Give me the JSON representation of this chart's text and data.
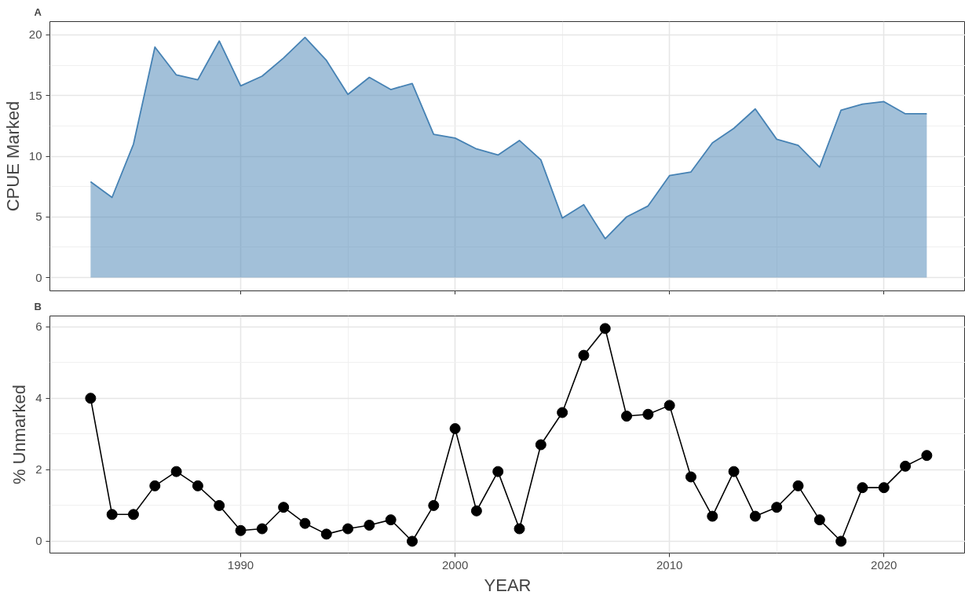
{
  "chart_data": [
    {
      "type": "area",
      "title": "A",
      "ylabel": "CPUE Marked",
      "x": [
        1983,
        1984,
        1985,
        1986,
        1987,
        1988,
        1989,
        1990,
        1991,
        1992,
        1993,
        1994,
        1995,
        1996,
        1997,
        1998,
        1999,
        2000,
        2001,
        2002,
        2003,
        2004,
        2005,
        2006,
        2007,
        2008,
        2009,
        2010,
        2011,
        2012,
        2013,
        2014,
        2015,
        2016,
        2017,
        2018,
        2019,
        2020,
        2021,
        2022
      ],
      "series": [
        {
          "color": "#4682b4",
          "values": [
            7.9,
            6.6,
            11.0,
            19.0,
            16.7,
            16.3,
            19.5,
            15.8,
            16.6,
            18.1,
            19.8,
            17.9,
            15.1,
            16.5,
            15.5,
            16.0,
            11.8,
            11.5,
            10.6,
            10.1,
            11.3,
            9.7,
            4.9,
            6.0,
            3.2,
            5.0,
            5.9,
            8.4,
            8.7,
            11.1,
            12.3,
            13.9,
            11.4,
            10.9,
            9.1,
            13.8,
            14.3,
            14.5,
            13.5,
            13.5
          ]
        }
      ],
      "xlim": [
        1981.1,
        2023.8
      ],
      "xticks": [
        1990,
        2000,
        2010,
        2020
      ],
      "ylim": [
        -1.1,
        21.1
      ],
      "yticks": [
        0,
        5,
        10,
        15,
        20
      ],
      "tick_labels": "y",
      "grid": true
    },
    {
      "type": "line",
      "title": "B",
      "xlabel": "YEAR",
      "ylabel": "% Unmarked",
      "x": [
        1983,
        1984,
        1985,
        1986,
        1987,
        1988,
        1989,
        1990,
        1991,
        1992,
        1993,
        1994,
        1995,
        1996,
        1997,
        1998,
        1999,
        2000,
        2001,
        2002,
        2003,
        2004,
        2005,
        2006,
        2007,
        2008,
        2009,
        2010,
        2011,
        2012,
        2013,
        2014,
        2015,
        2016,
        2017,
        2018,
        2019,
        2020,
        2021,
        2022
      ],
      "series": [
        {
          "color": "#000000",
          "values": [
            4.0,
            0.75,
            0.75,
            1.55,
            1.95,
            1.55,
            1.0,
            0.3,
            0.35,
            0.95,
            0.5,
            0.2,
            0.35,
            0.45,
            0.6,
            0.0,
            1.0,
            3.15,
            0.85,
            1.95,
            0.35,
            2.7,
            3.6,
            5.2,
            5.95,
            3.5,
            3.55,
            3.8,
            1.8,
            0.7,
            1.95,
            0.7,
            0.95,
            1.55,
            0.6,
            0.0,
            1.5,
            1.5,
            2.1,
            2.4
          ]
        }
      ],
      "xlim": [
        1981.1,
        2023.8
      ],
      "xticks": [
        1990,
        2000,
        2010,
        2020
      ],
      "ylim": [
        -0.33,
        6.3
      ],
      "yticks": [
        0,
        2,
        4,
        6
      ],
      "grid": true,
      "marker": "circle",
      "line_style": "solid"
    }
  ]
}
